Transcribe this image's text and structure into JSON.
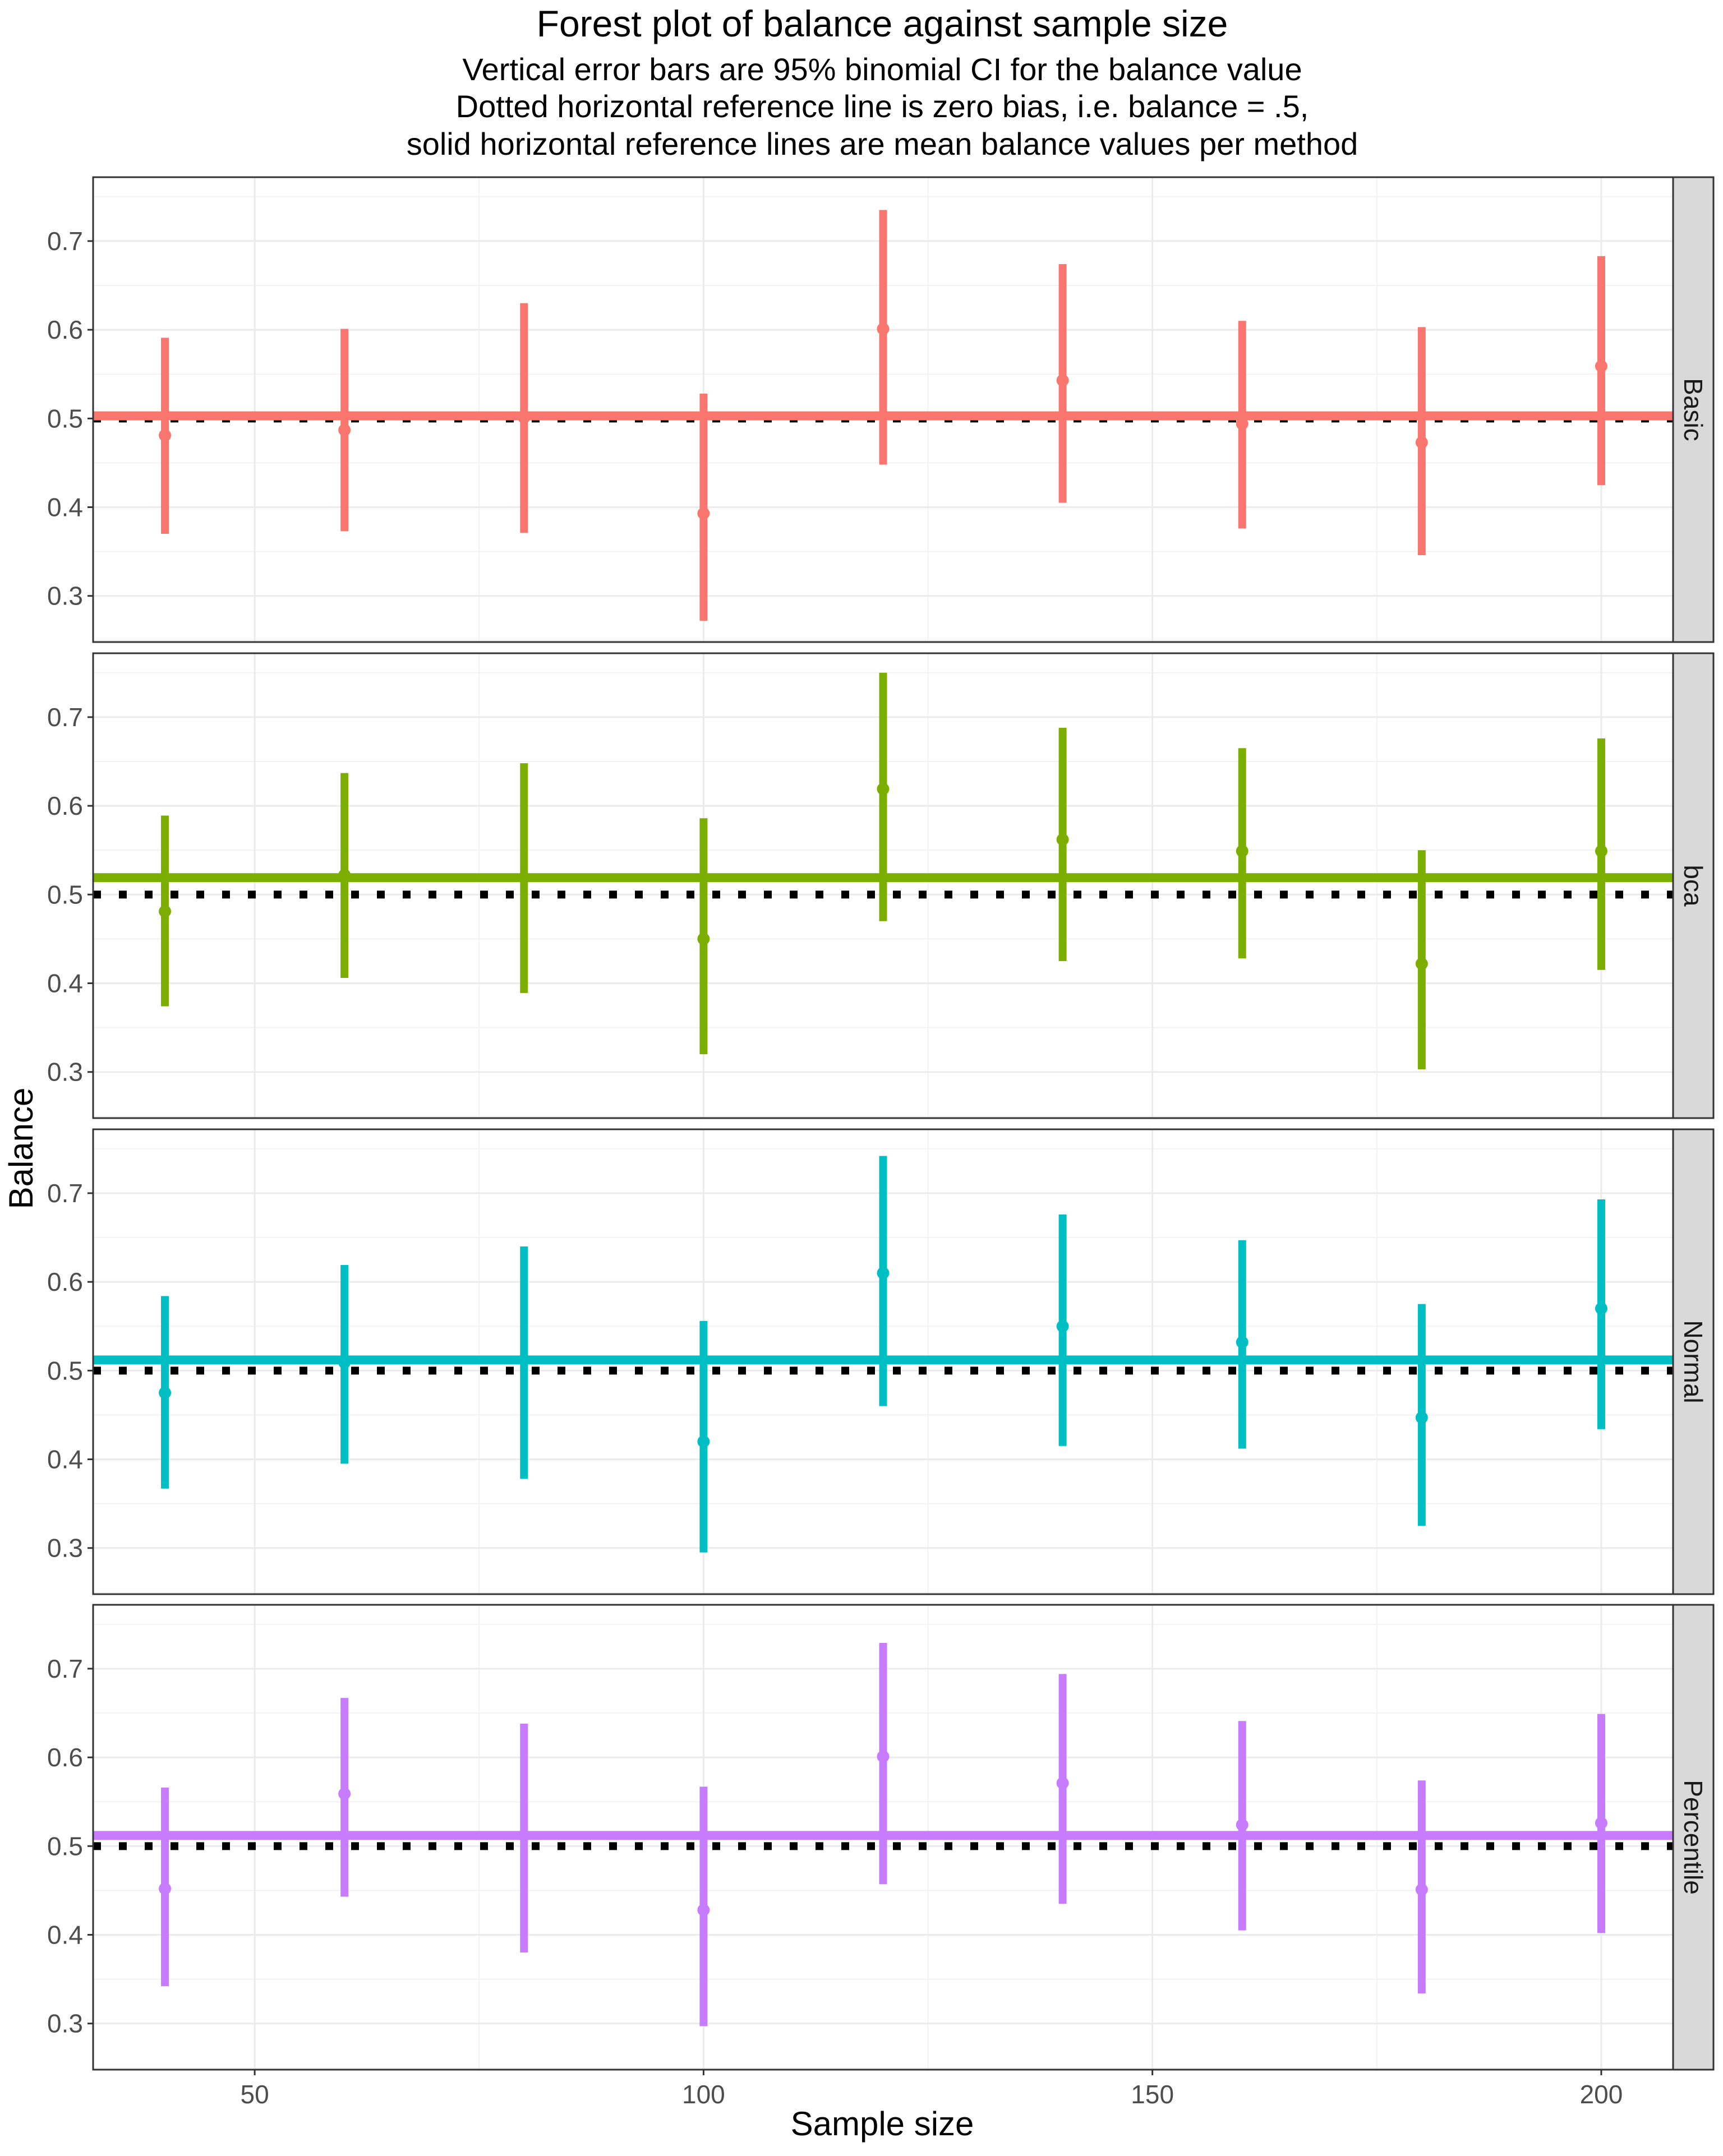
{
  "chart_data": {
    "type": "scatter",
    "title": "Forest plot of balance against sample size",
    "subtitle_lines": [
      "Vertical error bars are 95% binomial CI for the balance value",
      "Dotted horizontal reference line is zero bias, i.e. balance = .5,",
      "solid horizontal reference lines are mean balance values per method"
    ],
    "xlabel": "Sample size",
    "ylabel": "Balance",
    "x_ticks": [
      50,
      100,
      150,
      200
    ],
    "y_ticks": [
      0.3,
      0.4,
      0.5,
      0.6,
      0.7
    ],
    "y_tick_labels": [
      "0.3",
      "0.4",
      "0.5",
      "0.6",
      "0.7"
    ],
    "x_tick_labels": [
      "50",
      "100",
      "150",
      "200"
    ],
    "xlim": [
      32,
      208
    ],
    "ylim": [
      0.248,
      0.772
    ],
    "reference_line": 0.5,
    "grid": true,
    "x": [
      40,
      60,
      80,
      100,
      120,
      140,
      160,
      180,
      200
    ],
    "panels": [
      {
        "name": "Basic",
        "color": "#F8766D",
        "mean": 0.503,
        "values": [
          0.481,
          0.487,
          0.501,
          0.393,
          0.601,
          0.543,
          0.494,
          0.473,
          0.559
        ],
        "lower": [
          0.37,
          0.373,
          0.371,
          0.272,
          0.448,
          0.405,
          0.376,
          0.346,
          0.425
        ],
        "upper": [
          0.591,
          0.601,
          0.63,
          0.528,
          0.735,
          0.674,
          0.61,
          0.603,
          0.683
        ]
      },
      {
        "name": "bca",
        "color": "#7CAE00",
        "mean": 0.519,
        "values": [
          0.481,
          0.522,
          0.519,
          0.45,
          0.619,
          0.562,
          0.549,
          0.422,
          0.549
        ],
        "lower": [
          0.374,
          0.406,
          0.389,
          0.32,
          0.47,
          0.425,
          0.428,
          0.303,
          0.415
        ],
        "upper": [
          0.589,
          0.637,
          0.648,
          0.586,
          0.75,
          0.688,
          0.665,
          0.55,
          0.676
        ]
      },
      {
        "name": "Normal",
        "color": "#00BFC4",
        "mean": 0.512,
        "values": [
          0.475,
          0.509,
          0.512,
          0.42,
          0.61,
          0.55,
          0.532,
          0.447,
          0.57
        ],
        "lower": [
          0.367,
          0.395,
          0.378,
          0.295,
          0.46,
          0.415,
          0.412,
          0.325,
          0.434
        ],
        "upper": [
          0.584,
          0.619,
          0.64,
          0.556,
          0.742,
          0.676,
          0.647,
          0.575,
          0.693
        ]
      },
      {
        "name": "Percentile",
        "color": "#C77CFF",
        "mean": 0.512,
        "values": [
          0.452,
          0.559,
          0.512,
          0.428,
          0.601,
          0.571,
          0.524,
          0.451,
          0.526
        ],
        "lower": [
          0.342,
          0.443,
          0.38,
          0.297,
          0.457,
          0.435,
          0.405,
          0.334,
          0.402
        ],
        "upper": [
          0.566,
          0.667,
          0.638,
          0.567,
          0.729,
          0.694,
          0.641,
          0.574,
          0.649
        ]
      }
    ]
  }
}
